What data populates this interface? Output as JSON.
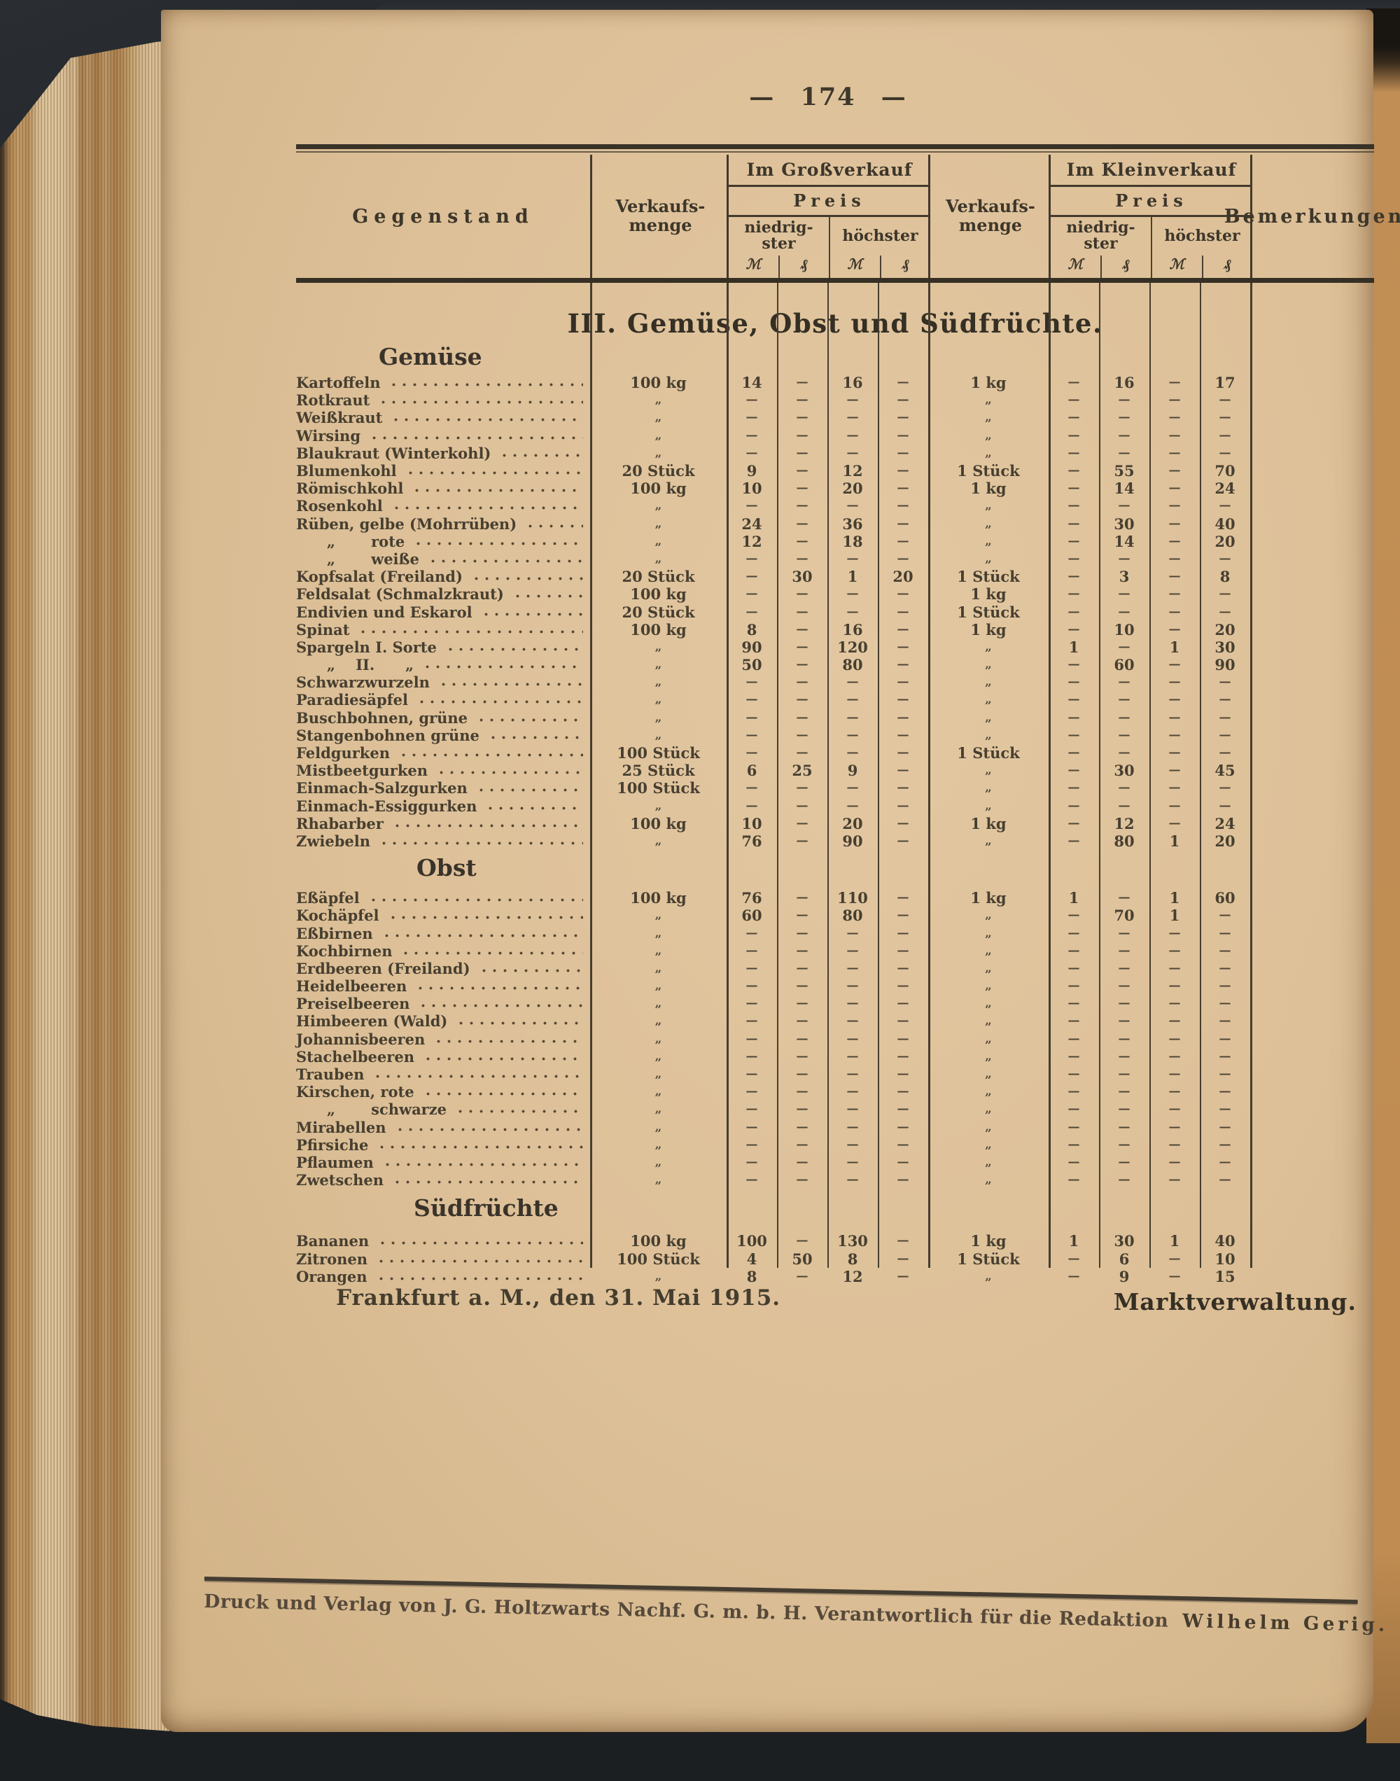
{
  "page_number": "— 174 —",
  "title": "III. Gemüse, Obst und Südfrüchte.",
  "header": {
    "gegenstand": "Gegenstand",
    "verkaufsmenge_1": "Verkaufs-",
    "verkaufsmenge_2": "menge",
    "gross": "Im Großverkauf",
    "klein": "Im Kleinverkauf",
    "preis": "Preis",
    "niedrigster_1": "niedrig-",
    "niedrigster_2": "ster",
    "hoechster": "höchster",
    "mark": "ℳ",
    "pfennig": "₰",
    "bemerkungen": "Bemerkungen"
  },
  "sections": [
    {
      "heading": "Gemüse",
      "rows": [
        [
          "Kartoffeln",
          "100 kg",
          "14",
          "—",
          "16",
          "—",
          "1 kg",
          "—",
          "16",
          "—",
          "17"
        ],
        [
          "Rotkraut",
          "„",
          "—",
          "—",
          "—",
          "—",
          "„",
          "—",
          "—",
          "—",
          "—"
        ],
        [
          "Weißkraut",
          "„",
          "—",
          "—",
          "—",
          "—",
          "„",
          "—",
          "—",
          "—",
          "—"
        ],
        [
          "Wirsing",
          "„",
          "—",
          "—",
          "—",
          "—",
          "„",
          "—",
          "—",
          "—",
          "—"
        ],
        [
          "Blaukraut (Winterkohl)",
          "„",
          "—",
          "—",
          "—",
          "—",
          "„",
          "—",
          "—",
          "—",
          "—"
        ],
        [
          "Blumenkohl",
          "20 Stück",
          "9",
          "—",
          "12",
          "—",
          "1 Stück",
          "—",
          "55",
          "—",
          "70"
        ],
        [
          "Römischkohl",
          "100 kg",
          "10",
          "—",
          "20",
          "—",
          "1 kg",
          "—",
          "14",
          "—",
          "24"
        ],
        [
          "Rosenkohl",
          "„",
          "—",
          "—",
          "—",
          "—",
          "„",
          "—",
          "—",
          "—",
          "—"
        ],
        [
          "Rüben, gelbe (Mohrrüben)",
          "„",
          "24",
          "—",
          "36",
          "—",
          "„",
          "—",
          "30",
          "—",
          "40"
        ],
        [
          "      „       rote",
          "„",
          "12",
          "—",
          "18",
          "—",
          "„",
          "—",
          "14",
          "—",
          "20"
        ],
        [
          "      „       weiße",
          "„",
          "—",
          "—",
          "—",
          "—",
          "„",
          "—",
          "—",
          "—",
          "—"
        ],
        [
          "Kopfsalat (Freiland)",
          "20 Stück",
          "—",
          "30",
          "1",
          "20",
          "1 Stück",
          "—",
          "3",
          "—",
          "8"
        ],
        [
          "Feldsalat (Schmalzkraut)",
          "100 kg",
          "—",
          "—",
          "—",
          "—",
          "1 kg",
          "—",
          "—",
          "—",
          "—"
        ],
        [
          "Endivien und Eskarol",
          "20 Stück",
          "—",
          "—",
          "—",
          "—",
          "1 Stück",
          "—",
          "—",
          "—",
          "—"
        ],
        [
          "Spinat",
          "100 kg",
          "8",
          "—",
          "16",
          "—",
          "1 kg",
          "—",
          "10",
          "—",
          "20"
        ],
        [
          "Spargeln I. Sorte",
          "„",
          "90",
          "—",
          "120",
          "—",
          "„",
          "1",
          "—",
          "1",
          "30"
        ],
        [
          "      „    II.      „",
          "„",
          "50",
          "—",
          "80",
          "—",
          "„",
          "—",
          "60",
          "—",
          "90"
        ],
        [
          "Schwarzwurzeln",
          "„",
          "—",
          "—",
          "—",
          "—",
          "„",
          "—",
          "—",
          "—",
          "—"
        ],
        [
          "Paradiesäpfel",
          "„",
          "—",
          "—",
          "—",
          "—",
          "„",
          "—",
          "—",
          "—",
          "—"
        ],
        [
          "Buschbohnen, grüne",
          "„",
          "—",
          "—",
          "—",
          "—",
          "„",
          "—",
          "—",
          "—",
          "—"
        ],
        [
          "Stangenbohnen grüne",
          "„",
          "—",
          "—",
          "—",
          "—",
          "„",
          "—",
          "—",
          "—",
          "—"
        ],
        [
          "Feldgurken",
          "100 Stück",
          "—",
          "—",
          "—",
          "—",
          "1 Stück",
          "—",
          "—",
          "—",
          "—"
        ],
        [
          "Mistbeetgurken",
          "25 Stück",
          "6",
          "25",
          "9",
          "—",
          "„",
          "—",
          "30",
          "—",
          "45"
        ],
        [
          "Einmach-Salzgurken",
          "100 Stück",
          "—",
          "—",
          "—",
          "—",
          "„",
          "—",
          "—",
          "—",
          "—"
        ],
        [
          "Einmach-Essiggurken",
          "„",
          "—",
          "—",
          "—",
          "—",
          "„",
          "—",
          "—",
          "—",
          "—"
        ],
        [
          "Rhabarber",
          "100 kg",
          "10",
          "—",
          "20",
          "—",
          "1 kg",
          "—",
          "12",
          "—",
          "24"
        ],
        [
          "Zwiebeln",
          "„",
          "76",
          "—",
          "90",
          "—",
          "„",
          "—",
          "80",
          "1",
          "20"
        ]
      ]
    },
    {
      "heading": "Obst",
      "rows": [
        [
          "Eßäpfel",
          "100 kg",
          "76",
          "—",
          "110",
          "—",
          "1 kg",
          "1",
          "—",
          "1",
          "60"
        ],
        [
          "Kochäpfel",
          "„",
          "60",
          "—",
          "80",
          "—",
          "„",
          "—",
          "70",
          "1",
          "—"
        ],
        [
          "Eßbirnen",
          "„",
          "—",
          "—",
          "—",
          "—",
          "„",
          "—",
          "—",
          "—",
          "—"
        ],
        [
          "Kochbirnen",
          "„",
          "—",
          "—",
          "—",
          "—",
          "„",
          "—",
          "—",
          "—",
          "—"
        ],
        [
          "Erdbeeren (Freiland)",
          "„",
          "—",
          "—",
          "—",
          "—",
          "„",
          "—",
          "—",
          "—",
          "—"
        ],
        [
          "Heidelbeeren",
          "„",
          "—",
          "—",
          "—",
          "—",
          "„",
          "—",
          "—",
          "—",
          "—"
        ],
        [
          "Preiselbeeren",
          "„",
          "—",
          "—",
          "—",
          "—",
          "„",
          "—",
          "—",
          "—",
          "—"
        ],
        [
          "Himbeeren (Wald)",
          "„",
          "—",
          "—",
          "—",
          "—",
          "„",
          "—",
          "—",
          "—",
          "—"
        ],
        [
          "Johannisbeeren",
          "„",
          "—",
          "—",
          "—",
          "—",
          "„",
          "—",
          "—",
          "—",
          "—"
        ],
        [
          "Stachelbeeren",
          "„",
          "—",
          "—",
          "—",
          "—",
          "„",
          "—",
          "—",
          "—",
          "—"
        ],
        [
          "Trauben",
          "„",
          "—",
          "—",
          "—",
          "—",
          "„",
          "—",
          "—",
          "—",
          "—"
        ],
        [
          "Kirschen, rote",
          "„",
          "—",
          "—",
          "—",
          "—",
          "„",
          "—",
          "—",
          "—",
          "—"
        ],
        [
          "      „       schwarze",
          "„",
          "—",
          "—",
          "—",
          "—",
          "„",
          "—",
          "—",
          "—",
          "—"
        ],
        [
          "Mirabellen",
          "„",
          "—",
          "—",
          "—",
          "—",
          "„",
          "—",
          "—",
          "—",
          "—"
        ],
        [
          "Pfirsiche",
          "„",
          "—",
          "—",
          "—",
          "—",
          "„",
          "—",
          "—",
          "—",
          "—"
        ],
        [
          "Pflaumen",
          "„",
          "—",
          "—",
          "—",
          "—",
          "„",
          "—",
          "—",
          "—",
          "—"
        ],
        [
          "Zwetschen",
          "„",
          "—",
          "—",
          "—",
          "—",
          "„",
          "—",
          "—",
          "—",
          "—"
        ]
      ]
    },
    {
      "heading": "Südfrüchte",
      "rows": [
        [
          "Bananen",
          "100 kg",
          "100",
          "—",
          "130",
          "—",
          "1 kg",
          "1",
          "30",
          "1",
          "40"
        ],
        [
          "Zitronen",
          "100 Stück",
          "4",
          "50",
          "8",
          "—",
          "1 Stück",
          "—",
          "6",
          "—",
          "10"
        ],
        [
          "Orangen",
          "„",
          "8",
          "—",
          "12",
          "—",
          "„",
          "—",
          "9",
          "—",
          "15"
        ]
      ]
    }
  ],
  "date_line": "Frankfurt a. M., den 31. Mai 1915.",
  "signature": "Marktverwaltung.",
  "footer": {
    "text": "Druck und Verlag von J. G. Holtzwarts Nachf. G. m. b. H. Verantwortlich für die Redaktion",
    "signer": "Wilhelm Gerig."
  },
  "colors": {
    "paper": "#ddc098",
    "ink": "#463e2f",
    "rule": "#43392c",
    "cover": "#2a2e32",
    "edge_brown": "#b8905c"
  }
}
